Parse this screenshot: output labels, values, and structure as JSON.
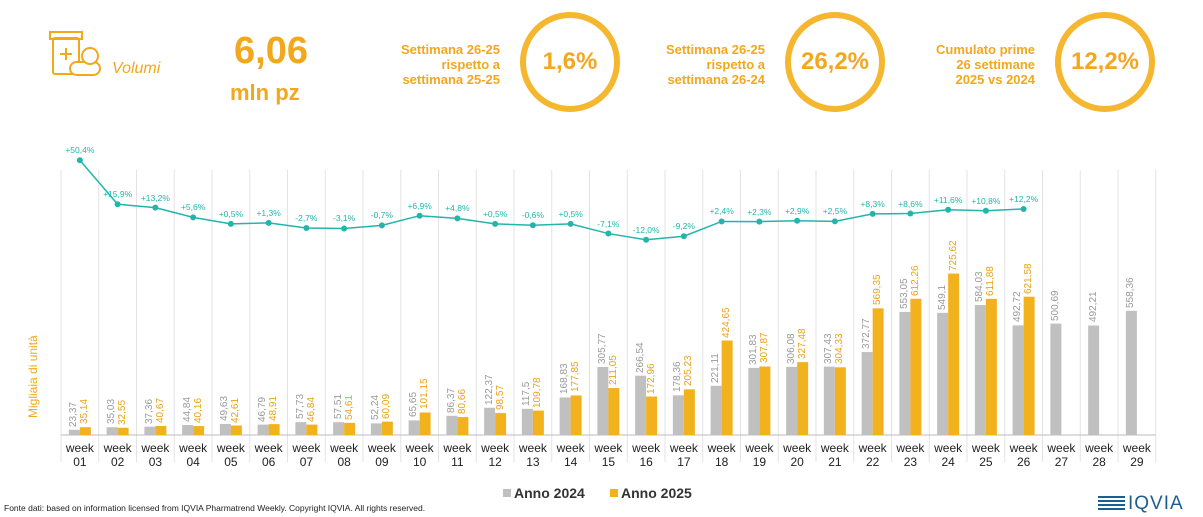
{
  "header": {
    "section": "Volumi",
    "total_value": "6,06",
    "total_unit": "mln pz"
  },
  "kpis": [
    {
      "lines": [
        "Settimana 26-25",
        "rispetto a",
        "settimana 25-25"
      ],
      "value": "1,6%"
    },
    {
      "lines": [
        "Settimana 26-25",
        "rispetto a",
        "settimana 26-24"
      ],
      "value": "26,2%"
    },
    {
      "lines": [
        "Cumulato prime",
        "26 settimane",
        "2025 vs 2024"
      ],
      "value": "12,2%"
    }
  ],
  "chart_data": {
    "type": "bar",
    "y_label": "Migliaia di unità",
    "categories": [
      "week 01",
      "week 02",
      "week 03",
      "week 04",
      "week 05",
      "week 06",
      "week 07",
      "week 08",
      "week 09",
      "week 10",
      "week 11",
      "week 12",
      "week 13",
      "week 14",
      "week 15",
      "week 16",
      "week 17",
      "week 18",
      "week 19",
      "week 20",
      "week 21",
      "week 22",
      "week 23",
      "week 24",
      "week 25",
      "week 26",
      "week 27",
      "week 28",
      "week 29"
    ],
    "ylim": [
      0,
      800
    ],
    "y2lim": [
      -20,
      60
    ],
    "series": [
      {
        "name": "Anno 2024",
        "color": "#c0c0c0",
        "values": [
          23.37,
          35.03,
          37.36,
          44.84,
          49.63,
          46.79,
          57.73,
          57.51,
          52.24,
          65.65,
          86.37,
          122.37,
          117.5,
          168.83,
          305.77,
          266.54,
          178.36,
          221.11,
          301.83,
          306.08,
          307.43,
          372.77,
          553.05,
          549.1,
          584.03,
          492.72,
          500.69,
          492.21,
          558.36
        ],
        "value_labels": [
          "23,37",
          "35,03",
          "37,36",
          "44,84",
          "49,63",
          "46,79",
          "57,73",
          "57,51",
          "52,24",
          "65,65",
          "86,37",
          "122,37",
          "117,5",
          "168,83",
          "305,77",
          "266,54",
          "178,36",
          "221,11",
          "301,83",
          "306,08",
          "307,43",
          "372,77",
          "553,05",
          "549,1",
          "584,03",
          "492,72",
          "500,69",
          "492,21",
          "558,36"
        ]
      },
      {
        "name": "Anno 2025",
        "color": "#f2b21e",
        "values": [
          35.14,
          32.55,
          40.67,
          40.16,
          42.61,
          48.91,
          46.84,
          54.61,
          60.09,
          101.15,
          80.66,
          98.57,
          109.78,
          177.85,
          211.05,
          172.96,
          205.23,
          424.65,
          307.87,
          327.48,
          304.33,
          569.35,
          612.26,
          725.62,
          611.88,
          621.58,
          null,
          null,
          null
        ],
        "value_labels": [
          "35,14",
          "32,55",
          "40,67",
          "40,16",
          "42,61",
          "48,91",
          "46,84",
          "54,61",
          "60,09",
          "101,15",
          "80,66",
          "98,57",
          "109,78",
          "177,85",
          "211,05",
          "172,96",
          "205,23",
          "424,65",
          "307,87",
          "327,48",
          "304,33",
          "569,35",
          "612,26",
          "725,62",
          "611,88",
          "621,58",
          null,
          null,
          null
        ]
      },
      {
        "type": "line",
        "axis": "y2",
        "color": "#22b5ac",
        "values": [
          50.4,
          15.9,
          13.2,
          5.6,
          0.5,
          1.3,
          -2.7,
          -3.1,
          -0.7,
          6.9,
          4.8,
          0.5,
          -0.6,
          0.5,
          -7.1,
          -12.0,
          -9.2,
          2.4,
          2.3,
          2.9,
          2.5,
          8.3,
          8.6,
          11.6,
          10.8,
          12.2,
          null,
          null,
          null
        ],
        "value_labels": [
          "+50,4%",
          "+15,9%",
          "+13,2%",
          "+5,6%",
          "+0,5%",
          "+1,3%",
          "-2,7%",
          "-3,1%",
          "-0,7%",
          "+6,9%",
          "+4,8%",
          "+0,5%",
          "-0,6%",
          "+0,5%",
          "-7,1%",
          "-12,0%",
          "-9,2%",
          "+2,4%",
          "+2,3%",
          "+2,9%",
          "+2,5%",
          "+8,3%",
          "+8,6%",
          "+11,6%",
          "+10,8%",
          "+12,2%",
          null,
          null,
          null
        ]
      }
    ],
    "source": "Fonte dati: based on information licensed from IQVIA Pharmatrend Weekly. Copyright IQVIA. All rights reserved.",
    "logo": "IQVIA"
  }
}
